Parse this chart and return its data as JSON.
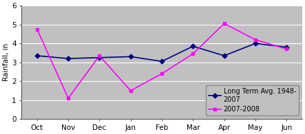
{
  "months": [
    "Oct",
    "Nov",
    "Dec",
    "Jan",
    "Feb",
    "Mar",
    "Apr",
    "May",
    "Jun"
  ],
  "long_term": [
    3.35,
    3.2,
    3.25,
    3.3,
    3.05,
    3.85,
    3.35,
    4.0,
    3.8
  ],
  "season_2008": [
    4.75,
    1.1,
    3.35,
    1.5,
    2.4,
    3.45,
    5.05,
    4.2,
    3.7
  ],
  "long_term_color": "#000080",
  "season_2008_color": "#FF00FF",
  "long_term_label": "Long Term Avg. 1948-\n2007",
  "season_2008_label": "2007-2008",
  "ylabel": "Rainfall, in",
  "ylim": [
    0,
    6
  ],
  "yticks": [
    0,
    1,
    2,
    3,
    4,
    5,
    6
  ],
  "plot_bg_color": "#C0C0C0",
  "fig_bg_color": "#FFFFFF",
  "grid_color": "#FFFFFF",
  "legend_fontsize": 7,
  "axis_fontsize": 7.5,
  "tick_fontsize": 7.5
}
